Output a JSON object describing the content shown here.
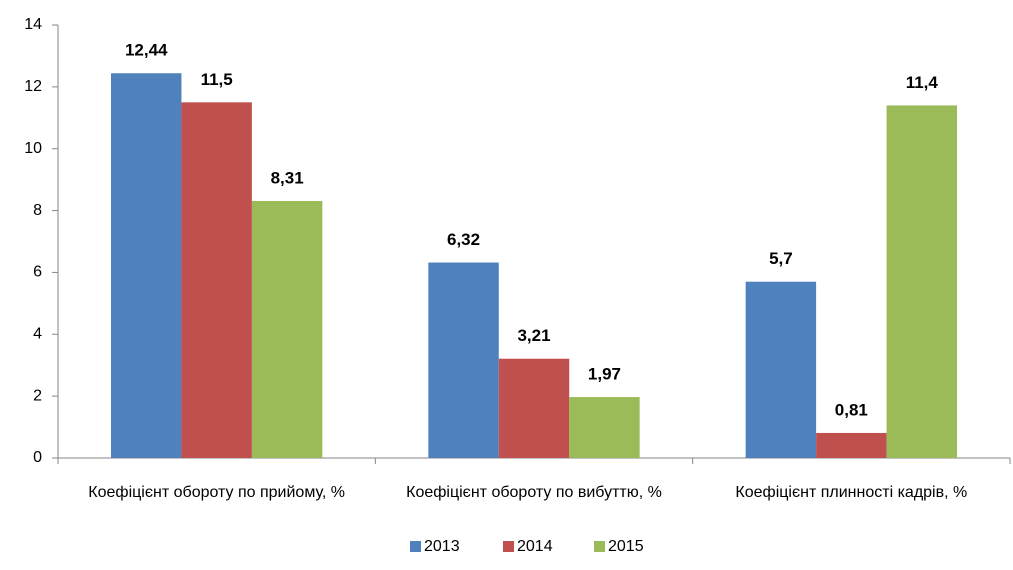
{
  "chart_data": {
    "type": "bar",
    "categories": [
      "Коефіцієнт обороту по прийому, %",
      "Коефіцієнт обороту по вибуттю, %",
      "Коефіцієнт плинності кадрів, %"
    ],
    "series": [
      {
        "name": "2013",
        "color": "#4f81bd",
        "values": [
          12.44,
          6.32,
          5.7
        ],
        "value_labels": [
          "12,44",
          "6,32",
          "5,7"
        ]
      },
      {
        "name": "2014",
        "color": "#c0504d",
        "values": [
          11.5,
          3.21,
          0.81
        ],
        "value_labels": [
          "11,5",
          "3,21",
          "0,81"
        ]
      },
      {
        "name": "2015",
        "color": "#9bbb59",
        "values": [
          8.31,
          1.97,
          11.4
        ],
        "value_labels": [
          "8,31",
          "1,97",
          "11,4"
        ]
      }
    ],
    "ylim": [
      0,
      14
    ],
    "yticks": [
      0,
      2,
      4,
      6,
      8,
      10,
      12,
      14
    ],
    "grid": false,
    "legend": "bottom"
  }
}
